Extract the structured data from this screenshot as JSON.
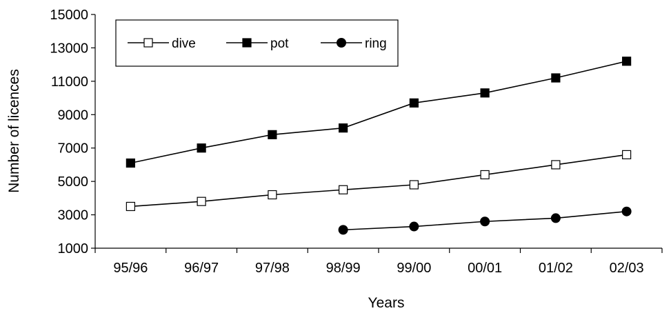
{
  "chart_data": {
    "type": "line",
    "title": "",
    "xlabel": "Years",
    "ylabel": "Number of licences",
    "categories": [
      "95/96",
      "96/97",
      "97/98",
      "98/99",
      "99/00",
      "00/01",
      "01/02",
      "02/03"
    ],
    "ylim": [
      1000,
      15000
    ],
    "yticks": [
      1000,
      3000,
      5000,
      7000,
      9000,
      11000,
      13000,
      15000
    ],
    "grid": false,
    "legend_position": "top-left",
    "series": [
      {
        "name": "dive",
        "marker": "square-open",
        "color": "#000000",
        "values": [
          3500,
          3800,
          4200,
          4500,
          4800,
          5400,
          6000,
          6600
        ]
      },
      {
        "name": "pot",
        "marker": "square-filled",
        "color": "#000000",
        "values": [
          6100,
          7000,
          7800,
          8200,
          9700,
          10300,
          11200,
          12200
        ]
      },
      {
        "name": "ring",
        "marker": "circle-filled",
        "color": "#000000",
        "values": [
          null,
          null,
          null,
          2100,
          2300,
          2600,
          2800,
          3200
        ]
      }
    ]
  }
}
